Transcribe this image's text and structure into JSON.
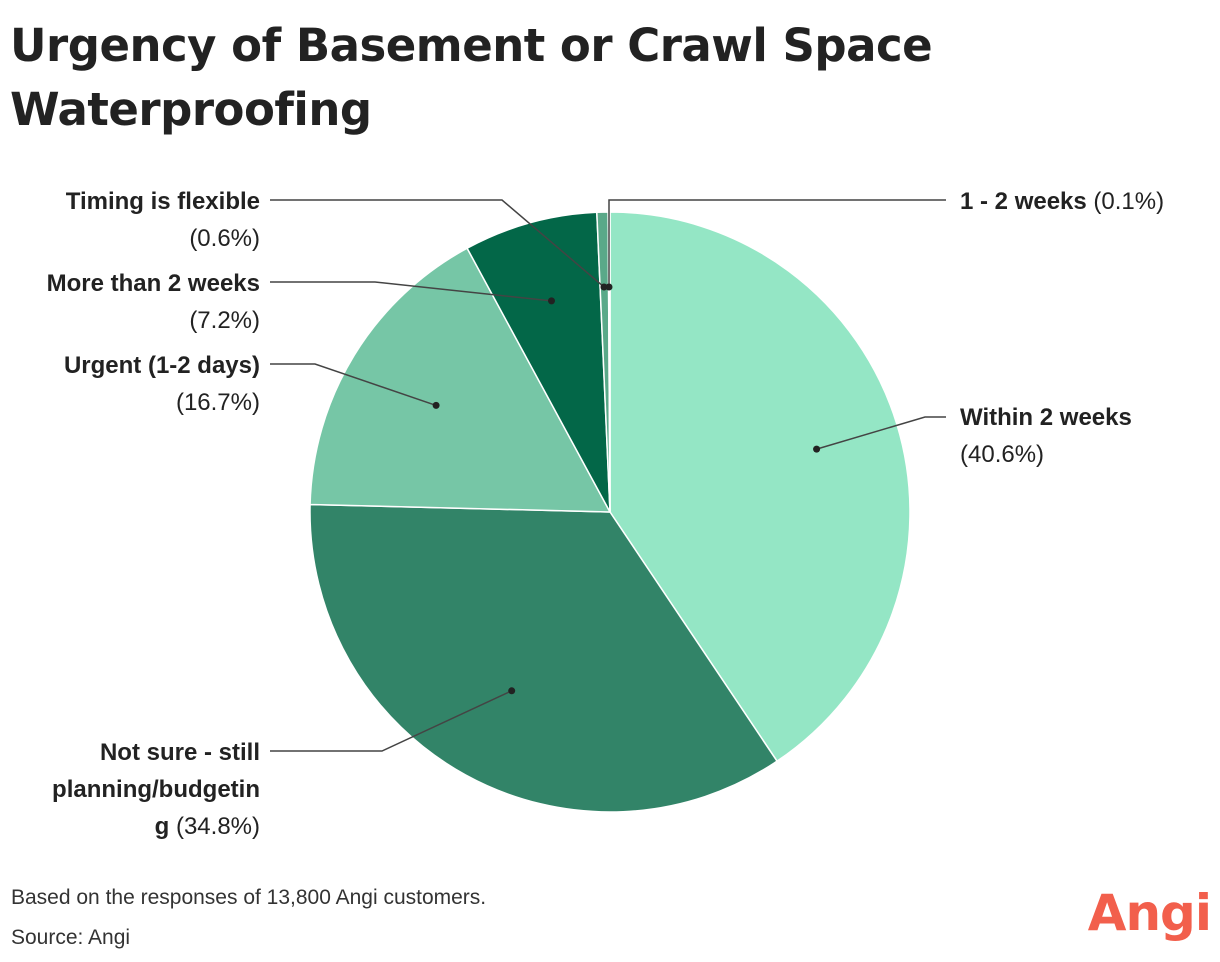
{
  "title": "Urgency of Basement or Crawl Space Waterproofing",
  "footnote": "Based on the responses of 13,800 Angi customers.",
  "source": "Source: Angi",
  "logo_text": "Angi",
  "colors": {
    "text": "#222222",
    "leader": "#444444",
    "logo": "#f25f4c"
  },
  "chart_data": {
    "type": "pie",
    "title": "Urgency of Basement or Crawl Space Waterproofing",
    "slices": [
      {
        "label": "Within 2 weeks",
        "value": 40.6,
        "value_text": "(40.6%)",
        "color": "#94e6c5"
      },
      {
        "label": "Not sure - still planning/budgeting",
        "value": 34.8,
        "value_text": "(34.8%)",
        "color": "#328468"
      },
      {
        "label": "Urgent (1-2 days)",
        "value": 16.7,
        "value_text": "(16.7%)",
        "color": "#76c6a6"
      },
      {
        "label": "More than 2 weeks",
        "value": 7.2,
        "value_text": "(7.2%)",
        "color": "#036748"
      },
      {
        "label": "Timing is flexible",
        "value": 0.6,
        "value_text": "(0.6%)",
        "color": "#5aa989"
      },
      {
        "label": "1 - 2 weeks",
        "value": 0.1,
        "value_text": "(0.1%)",
        "color": "#1b7254"
      }
    ],
    "legend": "none (direct labels with leader lines)"
  }
}
